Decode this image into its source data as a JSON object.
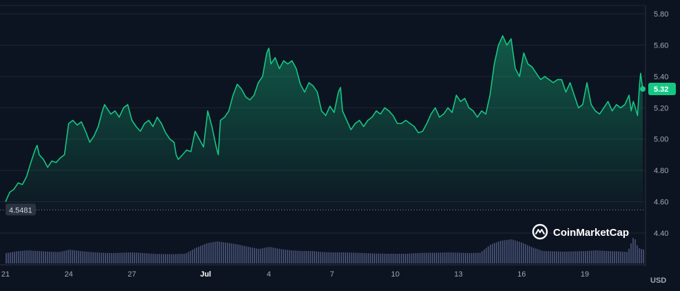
{
  "chart_data": {
    "type": "area",
    "currency": "USD",
    "current_price": "5.32",
    "baseline_price": "4.5481",
    "brand": "CoinMarketCap",
    "colors": {
      "line": "#16c784",
      "background": "#0d1421",
      "volume": "#3f4a6b",
      "label_bg": "#16c784",
      "baseline_label_bg": "#2b3240"
    },
    "ylim": [
      4.3,
      5.85
    ],
    "y_ticks": [
      "5.80",
      "5.60",
      "5.40",
      "5.20",
      "5.00",
      "4.80",
      "4.60",
      "4.40"
    ],
    "x_ticks": [
      {
        "label": "21",
        "day": 0,
        "bold": false
      },
      {
        "label": "24",
        "day": 3,
        "bold": false
      },
      {
        "label": "27",
        "day": 6,
        "bold": false
      },
      {
        "label": "Jul",
        "day": 9.5,
        "bold": true
      },
      {
        "label": "4",
        "day": 12.5,
        "bold": false
      },
      {
        "label": "7",
        "day": 15.5,
        "bold": false
      },
      {
        "label": "10",
        "day": 18.5,
        "bold": false
      },
      {
        "label": "13",
        "day": 21.5,
        "bold": false
      },
      {
        "label": "16",
        "day": 24.5,
        "bold": false
      },
      {
        "label": "19",
        "day": 27.5,
        "bold": false
      }
    ],
    "xlim": [
      0,
      30.25
    ],
    "price_points": [
      [
        0,
        4.6
      ],
      [
        0.2,
        4.66
      ],
      [
        0.4,
        4.68
      ],
      [
        0.6,
        4.72
      ],
      [
        0.8,
        4.71
      ],
      [
        1.0,
        4.76
      ],
      [
        1.2,
        4.85
      ],
      [
        1.4,
        4.93
      ],
      [
        1.5,
        4.96
      ],
      [
        1.6,
        4.9
      ],
      [
        1.8,
        4.87
      ],
      [
        2.0,
        4.82
      ],
      [
        2.2,
        4.86
      ],
      [
        2.4,
        4.85
      ],
      [
        2.6,
        4.88
      ],
      [
        2.8,
        4.9
      ],
      [
        3.0,
        5.1
      ],
      [
        3.2,
        5.12
      ],
      [
        3.4,
        5.09
      ],
      [
        3.6,
        5.11
      ],
      [
        3.8,
        5.05
      ],
      [
        4.0,
        4.98
      ],
      [
        4.2,
        5.02
      ],
      [
        4.4,
        5.08
      ],
      [
        4.6,
        5.18
      ],
      [
        4.7,
        5.22
      ],
      [
        4.8,
        5.2
      ],
      [
        5.0,
        5.16
      ],
      [
        5.2,
        5.18
      ],
      [
        5.4,
        5.14
      ],
      [
        5.6,
        5.2
      ],
      [
        5.8,
        5.22
      ],
      [
        6.0,
        5.12
      ],
      [
        6.2,
        5.08
      ],
      [
        6.4,
        5.05
      ],
      [
        6.6,
        5.1
      ],
      [
        6.8,
        5.12
      ],
      [
        7.0,
        5.08
      ],
      [
        7.2,
        5.14
      ],
      [
        7.4,
        5.1
      ],
      [
        7.6,
        5.04
      ],
      [
        7.8,
        5.0
      ],
      [
        8.0,
        4.98
      ],
      [
        8.1,
        4.9
      ],
      [
        8.2,
        4.87
      ],
      [
        8.4,
        4.9
      ],
      [
        8.6,
        4.93
      ],
      [
        8.8,
        4.92
      ],
      [
        9.0,
        5.05
      ],
      [
        9.2,
        5.0
      ],
      [
        9.4,
        4.95
      ],
      [
        9.6,
        5.18
      ],
      [
        9.8,
        5.08
      ],
      [
        10.0,
        4.95
      ],
      [
        10.1,
        4.9
      ],
      [
        10.2,
        5.12
      ],
      [
        10.4,
        5.14
      ],
      [
        10.6,
        5.18
      ],
      [
        10.8,
        5.28
      ],
      [
        11.0,
        5.35
      ],
      [
        11.2,
        5.32
      ],
      [
        11.4,
        5.27
      ],
      [
        11.6,
        5.25
      ],
      [
        11.8,
        5.28
      ],
      [
        12.0,
        5.36
      ],
      [
        12.2,
        5.4
      ],
      [
        12.4,
        5.55
      ],
      [
        12.5,
        5.58
      ],
      [
        12.6,
        5.48
      ],
      [
        12.8,
        5.52
      ],
      [
        13.0,
        5.45
      ],
      [
        13.2,
        5.5
      ],
      [
        13.4,
        5.48
      ],
      [
        13.6,
        5.5
      ],
      [
        13.8,
        5.45
      ],
      [
        14.0,
        5.35
      ],
      [
        14.2,
        5.3
      ],
      [
        14.4,
        5.36
      ],
      [
        14.6,
        5.34
      ],
      [
        14.8,
        5.3
      ],
      [
        15.0,
        5.18
      ],
      [
        15.2,
        5.15
      ],
      [
        15.4,
        5.21
      ],
      [
        15.6,
        5.17
      ],
      [
        15.8,
        5.3
      ],
      [
        15.9,
        5.33
      ],
      [
        16.0,
        5.18
      ],
      [
        16.2,
        5.12
      ],
      [
        16.4,
        5.06
      ],
      [
        16.6,
        5.1
      ],
      [
        16.8,
        5.12
      ],
      [
        17.0,
        5.08
      ],
      [
        17.2,
        5.12
      ],
      [
        17.4,
        5.14
      ],
      [
        17.6,
        5.18
      ],
      [
        17.8,
        5.16
      ],
      [
        18.0,
        5.2
      ],
      [
        18.2,
        5.18
      ],
      [
        18.4,
        5.15
      ],
      [
        18.6,
        5.1
      ],
      [
        18.8,
        5.1
      ],
      [
        19.0,
        5.12
      ],
      [
        19.2,
        5.1
      ],
      [
        19.4,
        5.08
      ],
      [
        19.6,
        5.04
      ],
      [
        19.8,
        5.05
      ],
      [
        20.0,
        5.1
      ],
      [
        20.2,
        5.16
      ],
      [
        20.4,
        5.2
      ],
      [
        20.6,
        5.14
      ],
      [
        20.8,
        5.16
      ],
      [
        21.0,
        5.2
      ],
      [
        21.2,
        5.17
      ],
      [
        21.4,
        5.28
      ],
      [
        21.6,
        5.24
      ],
      [
        21.8,
        5.26
      ],
      [
        22.0,
        5.2
      ],
      [
        22.2,
        5.18
      ],
      [
        22.4,
        5.14
      ],
      [
        22.6,
        5.18
      ],
      [
        22.8,
        5.16
      ],
      [
        23.0,
        5.28
      ],
      [
        23.2,
        5.48
      ],
      [
        23.4,
        5.6
      ],
      [
        23.6,
        5.66
      ],
      [
        23.8,
        5.6
      ],
      [
        24.0,
        5.64
      ],
      [
        24.2,
        5.45
      ],
      [
        24.4,
        5.4
      ],
      [
        24.6,
        5.55
      ],
      [
        24.8,
        5.48
      ],
      [
        25.0,
        5.46
      ],
      [
        25.2,
        5.42
      ],
      [
        25.4,
        5.38
      ],
      [
        25.6,
        5.4
      ],
      [
        25.8,
        5.38
      ],
      [
        26.0,
        5.36
      ],
      [
        26.2,
        5.38
      ],
      [
        26.4,
        5.38
      ],
      [
        26.6,
        5.3
      ],
      [
        26.8,
        5.36
      ],
      [
        27.0,
        5.28
      ],
      [
        27.2,
        5.2
      ],
      [
        27.4,
        5.22
      ],
      [
        27.6,
        5.36
      ],
      [
        27.8,
        5.22
      ],
      [
        28.0,
        5.18
      ],
      [
        28.2,
        5.16
      ],
      [
        28.4,
        5.2
      ],
      [
        28.6,
        5.24
      ],
      [
        28.8,
        5.18
      ],
      [
        29.0,
        5.22
      ],
      [
        29.2,
        5.2
      ],
      [
        29.4,
        5.22
      ],
      [
        29.6,
        5.28
      ],
      [
        29.7,
        5.18
      ],
      [
        29.8,
        5.24
      ],
      [
        29.9,
        5.2
      ],
      [
        30.0,
        5.15
      ],
      [
        30.05,
        5.25
      ],
      [
        30.1,
        5.35
      ],
      [
        30.15,
        5.42
      ],
      [
        30.25,
        5.32
      ]
    ],
    "volume_points": [
      [
        0,
        0.3
      ],
      [
        0.5,
        0.35
      ],
      [
        1,
        0.38
      ],
      [
        1.5,
        0.36
      ],
      [
        2,
        0.34
      ],
      [
        2.5,
        0.33
      ],
      [
        3,
        0.4
      ],
      [
        3.5,
        0.36
      ],
      [
        4,
        0.33
      ],
      [
        4.5,
        0.31
      ],
      [
        5,
        0.3
      ],
      [
        5.5,
        0.31
      ],
      [
        6,
        0.32
      ],
      [
        6.5,
        0.3
      ],
      [
        7,
        0.28
      ],
      [
        7.5,
        0.27
      ],
      [
        8,
        0.27
      ],
      [
        8.5,
        0.28
      ],
      [
        9,
        0.45
      ],
      [
        9.5,
        0.58
      ],
      [
        10,
        0.64
      ],
      [
        10.5,
        0.6
      ],
      [
        11,
        0.55
      ],
      [
        11.5,
        0.48
      ],
      [
        12,
        0.42
      ],
      [
        12.5,
        0.48
      ],
      [
        13,
        0.42
      ],
      [
        13.5,
        0.38
      ],
      [
        14,
        0.36
      ],
      [
        14.5,
        0.36
      ],
      [
        15,
        0.33
      ],
      [
        15.5,
        0.32
      ],
      [
        16,
        0.32
      ],
      [
        16.5,
        0.31
      ],
      [
        17,
        0.3
      ],
      [
        17.5,
        0.29
      ],
      [
        18,
        0.28
      ],
      [
        18.5,
        0.28
      ],
      [
        19,
        0.28
      ],
      [
        19.5,
        0.3
      ],
      [
        20,
        0.31
      ],
      [
        20.5,
        0.31
      ],
      [
        21,
        0.32
      ],
      [
        21.5,
        0.31
      ],
      [
        22,
        0.3
      ],
      [
        22.5,
        0.31
      ],
      [
        23,
        0.55
      ],
      [
        23.5,
        0.66
      ],
      [
        24,
        0.7
      ],
      [
        24.5,
        0.6
      ],
      [
        25,
        0.46
      ],
      [
        25.5,
        0.36
      ],
      [
        26,
        0.35
      ],
      [
        26.5,
        0.34
      ],
      [
        27,
        0.35
      ],
      [
        27.5,
        0.36
      ],
      [
        28,
        0.38
      ],
      [
        28.5,
        0.36
      ],
      [
        29,
        0.35
      ],
      [
        29.5,
        0.33
      ],
      [
        29.8,
        0.8
      ],
      [
        30,
        0.45
      ],
      [
        30.25,
        0.4
      ]
    ]
  }
}
